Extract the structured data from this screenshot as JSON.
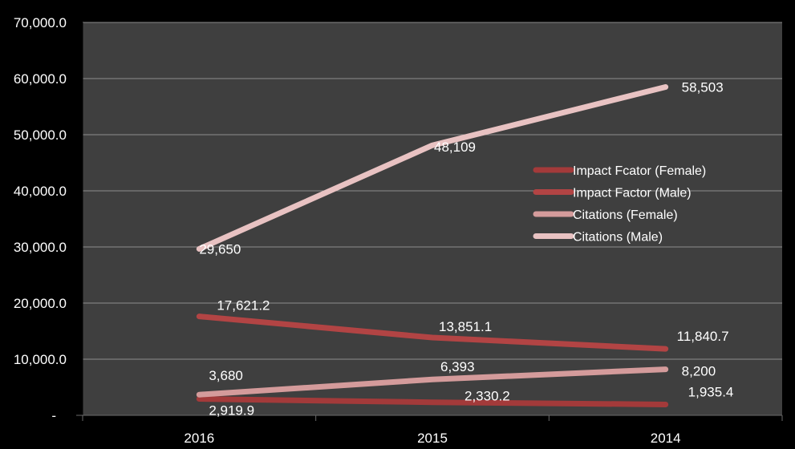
{
  "chart_data": {
    "type": "line",
    "categories": [
      "2016",
      "2015",
      "2014"
    ],
    "ylim": [
      0,
      70000
    ],
    "y_ticks": [
      "-",
      "10,000.0",
      "20,000.0",
      "30,000.0",
      "40,000.0",
      "50,000.0",
      "60,000.0",
      "70,000.0"
    ],
    "grid": "horizontal",
    "legend_position": "right",
    "background_color": "#3f3f3f",
    "page_background": "#000000",
    "series": [
      {
        "name": "Impact Fcator (Female)",
        "color": "#a33a3a",
        "values": [
          2919.9,
          2330.2,
          1935.4
        ],
        "labels": [
          "2,919.9",
          "2,330.2",
          "1,935.4"
        ]
      },
      {
        "name": "Impact Factor (Male)",
        "color": "#b24444",
        "values": [
          17621.2,
          13851.1,
          11840.7
        ],
        "labels": [
          "17,621.2",
          "13,851.1",
          "11,840.7"
        ]
      },
      {
        "name": "Citations (Female)",
        "color": "#d49b9b",
        "values": [
          3680,
          6393,
          8200
        ],
        "labels": [
          "3,680",
          "6,393",
          "8,200"
        ]
      },
      {
        "name": "Citations (Male)",
        "color": "#e8c2c2",
        "values": [
          29650,
          48109,
          58503
        ],
        "labels": [
          "29,650",
          "48,109",
          "58,503"
        ]
      }
    ]
  }
}
